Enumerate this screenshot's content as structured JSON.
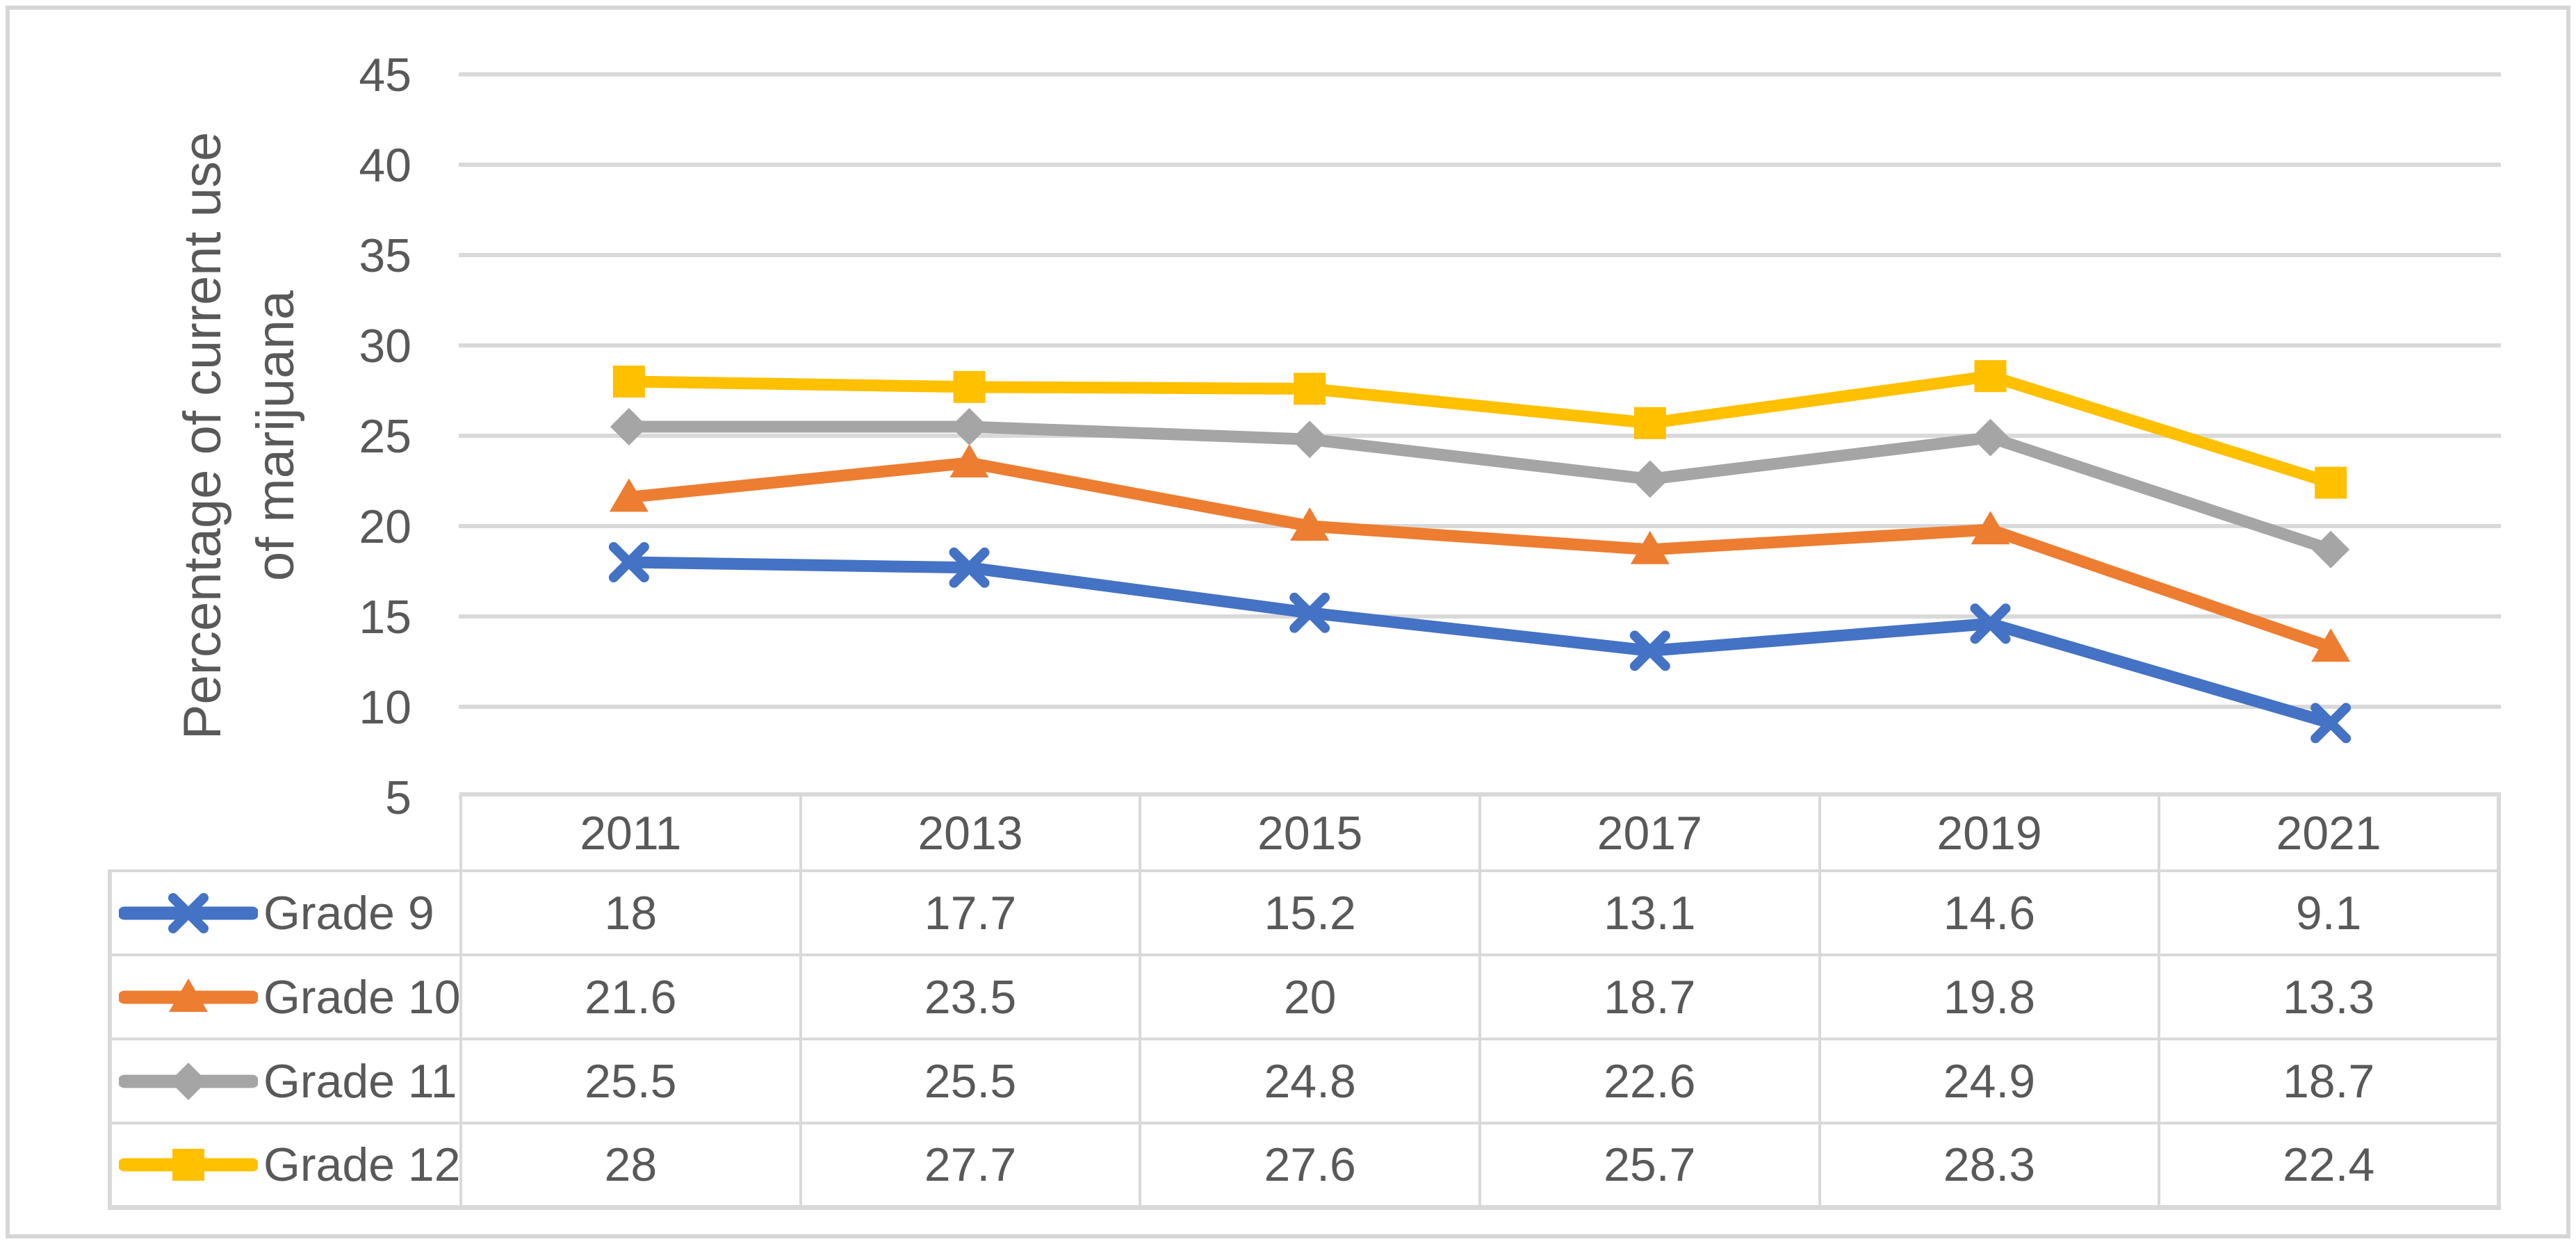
{
  "chart_data": {
    "type": "line",
    "x_categories": [
      "2011",
      "2013",
      "2015",
      "2017",
      "2019",
      "2021"
    ],
    "y_axis": {
      "min": 5,
      "max": 45,
      "step": 5,
      "ticks": [
        45,
        40,
        35,
        30,
        25,
        20,
        15,
        10,
        5
      ]
    },
    "ylabel": "Percentage of current use of marijuana",
    "ylabel_lines": [
      "Percentage of current use",
      "of marijuana"
    ],
    "grid": "horizontal-only",
    "legend_position": "left-of-data-table-rows",
    "series": [
      {
        "name": "Grade 9",
        "marker": "x",
        "color": "#4472C4",
        "values": [
          18,
          17.7,
          15.2,
          13.1,
          14.6,
          9.1
        ]
      },
      {
        "name": "Grade 10",
        "marker": "triangle",
        "color": "#ED7D31",
        "values": [
          21.6,
          23.5,
          20,
          18.7,
          19.8,
          13.3
        ]
      },
      {
        "name": "Grade 11",
        "marker": "diamond",
        "color": "#A5A5A5",
        "values": [
          25.5,
          25.5,
          24.8,
          22.6,
          24.9,
          18.7
        ]
      },
      {
        "name": "Grade 12",
        "marker": "square",
        "color": "#FFC000",
        "values": [
          28,
          27.7,
          27.6,
          25.7,
          28.3,
          22.4
        ]
      }
    ]
  },
  "colors": {
    "grid": "#D9D9D9",
    "table_border": "#D9D9D9",
    "text": "#595959",
    "frame": "#D6D6D6",
    "background": "#FFFFFF"
  }
}
